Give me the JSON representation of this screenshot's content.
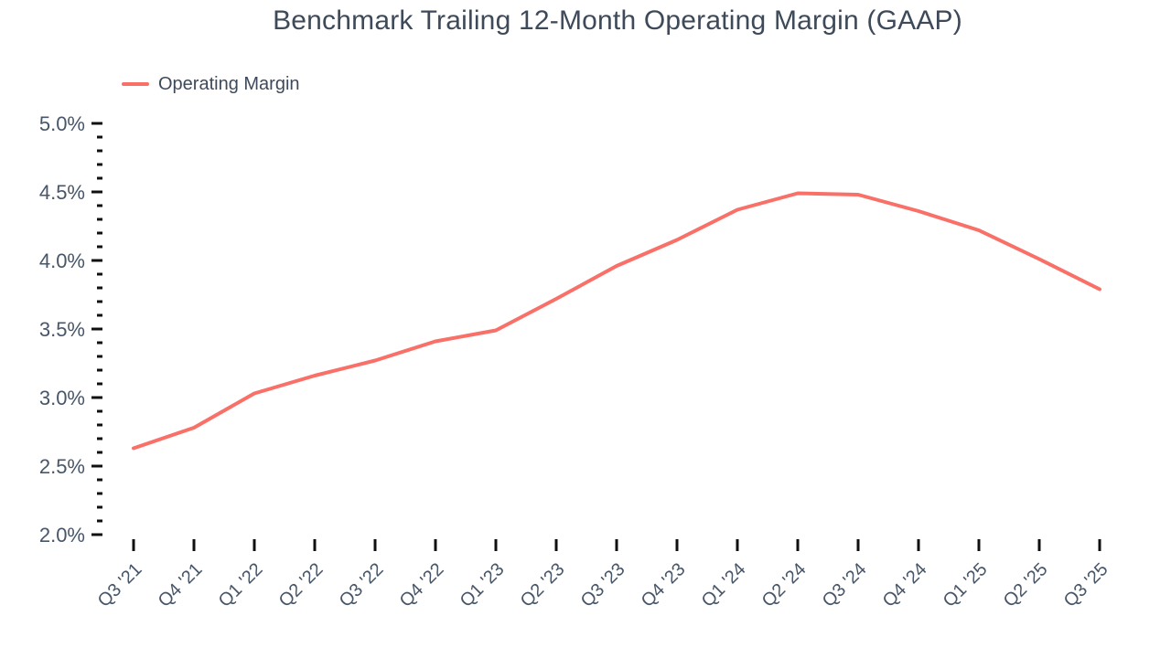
{
  "chart": {
    "title": "Benchmark Trailing 12-Month Operating Margin (GAAP)",
    "legend": {
      "label": "Operating Margin"
    }
  },
  "chart_data": {
    "type": "line",
    "title": "Benchmark Trailing 12-Month Operating Margin (GAAP)",
    "categories": [
      "Q3 '21",
      "Q4 '21",
      "Q1 '22",
      "Q2 '22",
      "Q3 '22",
      "Q4 '22",
      "Q1 '23",
      "Q2 '23",
      "Q3 '23",
      "Q4 '23",
      "Q1 '24",
      "Q2 '24",
      "Q3 '24",
      "Q4 '24",
      "Q1 '25",
      "Q2 '25",
      "Q3 '25"
    ],
    "series": [
      {
        "name": "Operating Margin",
        "values": [
          2.63,
          2.78,
          3.03,
          3.16,
          3.27,
          3.41,
          3.49,
          3.72,
          3.96,
          4.15,
          4.37,
          4.49,
          4.48,
          4.36,
          4.22,
          4.01,
          3.79
        ],
        "color": "#f87068"
      }
    ],
    "xlabel": "",
    "ylabel": "",
    "ylim": [
      2.0,
      5.0
    ],
    "ytick_step": 0.5,
    "ytick_minor_step": 0.1,
    "ytick_suffix": "%",
    "grid": false,
    "legend_position": "top-left",
    "colors": {
      "line": "#f87068",
      "tick": "#101010",
      "axis_label": "#475669",
      "title": "#3e4a59",
      "background": "#ffffff"
    }
  }
}
